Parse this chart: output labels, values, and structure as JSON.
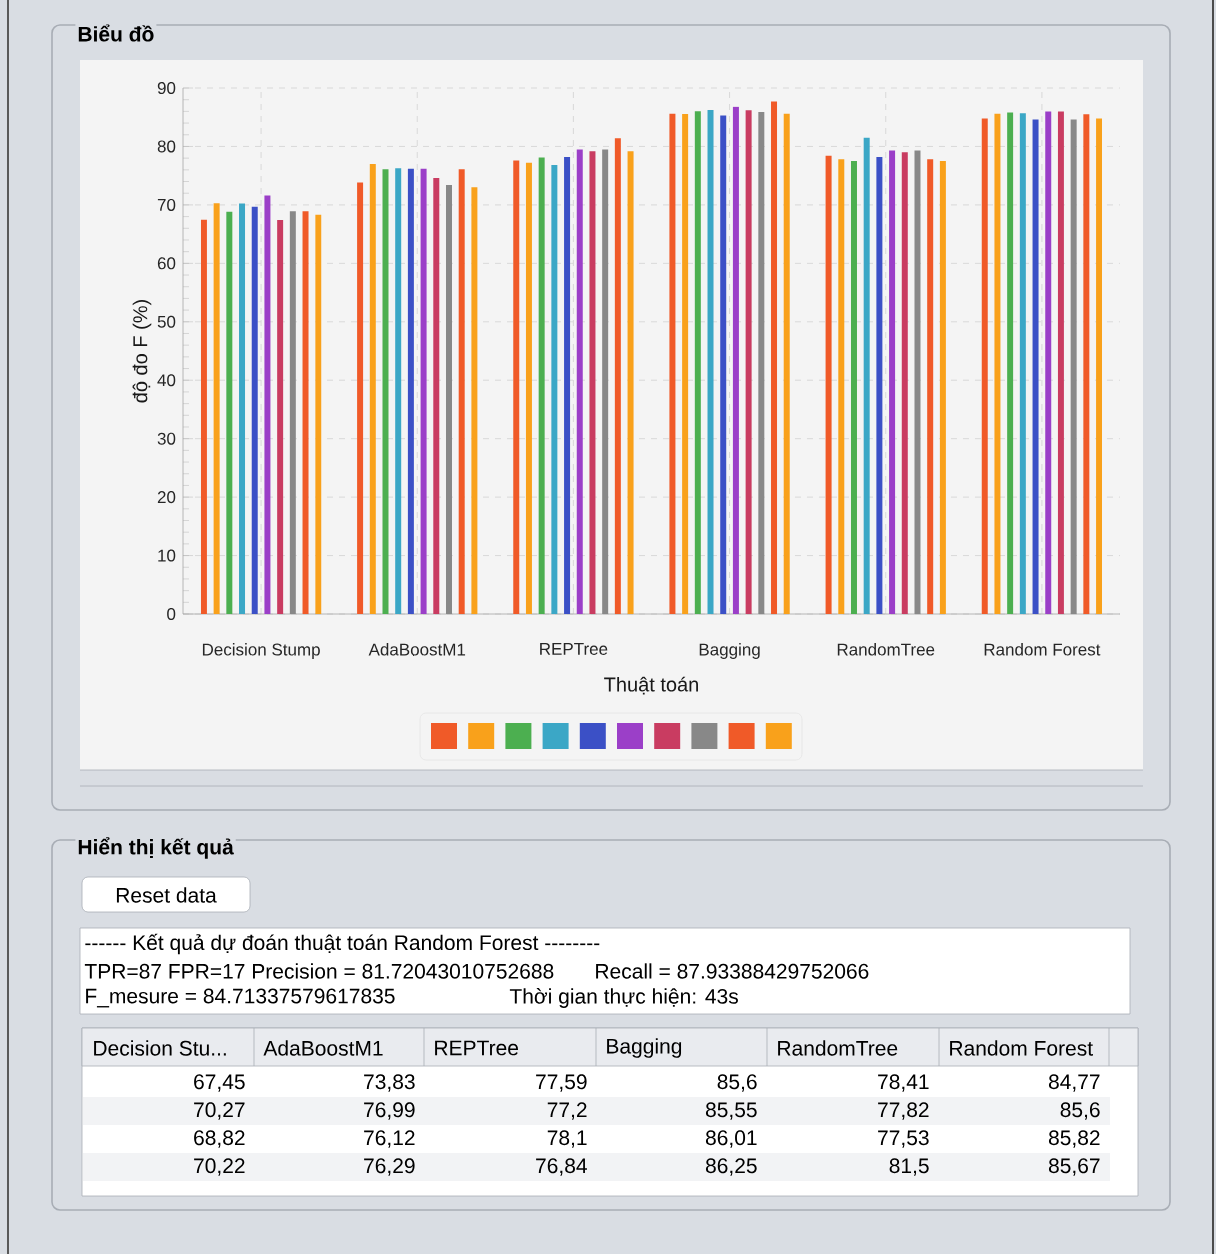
{
  "chart_data": {
    "type": "bar",
    "xlabel": "Thuật toán",
    "ylabel": "độ đo F (%)",
    "categories": [
      "Decision Stump",
      "AdaBoostM1",
      "REPTree",
      "Bagging",
      "RandomTree",
      "Random Forest"
    ],
    "series": [
      {
        "color": "#f05a28",
        "values": [
          67.45,
          73.83,
          77.59,
          85.6,
          78.41,
          84.77
        ],
        "value_labels": [
          "67,45",
          "73,83",
          "77,59",
          "85,6",
          "78,41",
          "84,77"
        ]
      },
      {
        "color": "#f9a11b",
        "values": [
          70.27,
          76.99,
          77.2,
          85.55,
          77.82,
          85.6
        ],
        "value_labels": [
          "70,27",
          "76,99",
          "77,2",
          "85,55",
          "77,82",
          "85,6"
        ]
      },
      {
        "color": "#4caf50",
        "values": [
          68.82,
          76.12,
          78.1,
          86.01,
          77.53,
          85.82
        ],
        "value_labels": [
          "68,82",
          "76,12",
          "78,1",
          "86,01",
          "77,53",
          "85,82"
        ]
      },
      {
        "color": "#3ba7c6",
        "values": [
          70.22,
          76.29,
          76.84,
          86.25,
          81.5,
          85.67
        ],
        "value_labels": [
          "70,22",
          "76,29",
          "76,84",
          "86,25",
          "81,5",
          "85,67"
        ]
      },
      {
        "color": "#3b50c6",
        "values": [
          69.7,
          76.2,
          78.2,
          85.3,
          78.2,
          84.6
        ]
      },
      {
        "color": "#9b3fc8",
        "values": [
          71.6,
          76.2,
          79.5,
          86.8,
          79.3,
          86.0
        ]
      },
      {
        "color": "#c93c61",
        "values": [
          67.4,
          74.6,
          79.2,
          86.2,
          79.0,
          86.0
        ]
      },
      {
        "color": "#888888",
        "values": [
          68.9,
          73.4,
          79.5,
          85.9,
          79.3,
          84.6
        ]
      },
      {
        "color": "#f05a28",
        "values": [
          68.9,
          76.1,
          81.4,
          87.7,
          77.8,
          85.5
        ]
      },
      {
        "color": "#f9a11b",
        "values": [
          68.3,
          73.0,
          79.2,
          85.6,
          77.5,
          84.8
        ]
      }
    ],
    "ylim": [
      0,
      90
    ],
    "yticks": [
      0,
      10,
      20,
      30,
      40,
      50,
      60,
      70,
      80,
      90
    ],
    "grid": true,
    "annotations": [
      "Biểu đồ",
      "Hiển thị kết quả",
      "Reset data",
      "------ Kết quả dự đoán thuật toán Random Forest --------",
      "TPR=87 FPR=17 Precision = 81.72043010752688",
      "Recall = 87.93388429752066",
      "F_mesure = 84.71337579617835",
      "Thời gian thực hiện: 43s",
      "Decision Stu...",
      "AdaBoostM1",
      "REPTree",
      "Bagging",
      "RandomTree",
      "Random Forest"
    ]
  }
}
